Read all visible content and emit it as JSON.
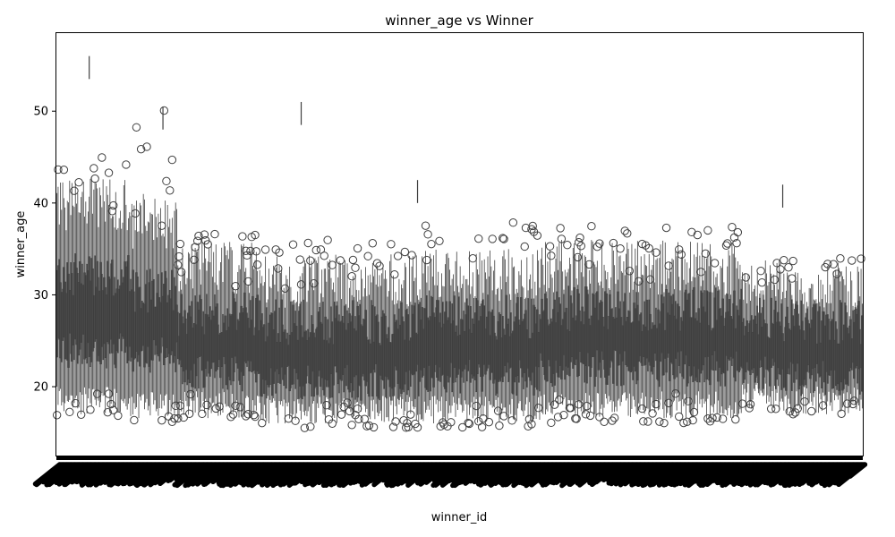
{
  "chart_data": {
    "type": "box",
    "title": "winner_age vs Winner",
    "xlabel": "winner_id",
    "ylabel": "winner_age",
    "ylim": [
      12.5,
      58.5
    ],
    "yticks": [
      20,
      30,
      40,
      50
    ],
    "grid": false,
    "legend": "none",
    "category_count": 700,
    "box_color": "#3f3f3f",
    "segments": [
      {
        "from": 0.0,
        "to": 0.09,
        "median": 27.5,
        "q1": 24.0,
        "q3": 32.0,
        "whisker_low": 18.5,
        "whisker_high": 40.0,
        "outlier_high": 45.0,
        "outlier_low": 16.5
      },
      {
        "from": 0.09,
        "to": 0.15,
        "median": 26.5,
        "q1": 23.5,
        "q3": 30.5,
        "whisker_low": 18.0,
        "whisker_high": 38.0,
        "outlier_high": 50.5,
        "outlier_low": 16.0
      },
      {
        "from": 0.15,
        "to": 0.25,
        "median": 25.0,
        "q1": 21.5,
        "q3": 28.0,
        "whisker_low": 18.0,
        "whisker_high": 33.0,
        "outlier_high": 37.0,
        "outlier_low": 16.5
      },
      {
        "from": 0.25,
        "to": 0.45,
        "median": 23.5,
        "q1": 20.5,
        "q3": 27.0,
        "whisker_low": 17.5,
        "whisker_high": 31.5,
        "outlier_high": 36.0,
        "outlier_low": 15.5
      },
      {
        "from": 0.45,
        "to": 0.6,
        "median": 24.0,
        "q1": 21.0,
        "q3": 27.5,
        "whisker_low": 17.5,
        "whisker_high": 32.0,
        "outlier_high": 38.0,
        "outlier_low": 15.5
      },
      {
        "from": 0.6,
        "to": 0.85,
        "median": 25.0,
        "q1": 22.0,
        "q3": 28.5,
        "whisker_low": 18.0,
        "whisker_high": 33.0,
        "outlier_high": 37.5,
        "outlier_low": 16.0
      },
      {
        "from": 0.85,
        "to": 0.9,
        "median": 24.5,
        "q1": 21.5,
        "q3": 27.5,
        "whisker_low": 19.0,
        "whisker_high": 31.0,
        "outlier_high": 33.0,
        "outlier_low": 17.5
      },
      {
        "from": 0.9,
        "to": 1.0,
        "median": 24.0,
        "q1": 21.0,
        "q3": 27.0,
        "whisker_low": 18.5,
        "whisker_high": 30.5,
        "outlier_high": 34.0,
        "outlier_low": 17.0
      }
    ],
    "notable_outliers": [
      {
        "category_index": 28,
        "value": 56.0
      },
      {
        "category_index": 92,
        "value": 50.5
      },
      {
        "category_index": 212,
        "value": 51.0
      },
      {
        "category_index": 313,
        "value": 42.5
      },
      {
        "category_index": 630,
        "value": 42.0
      }
    ]
  }
}
